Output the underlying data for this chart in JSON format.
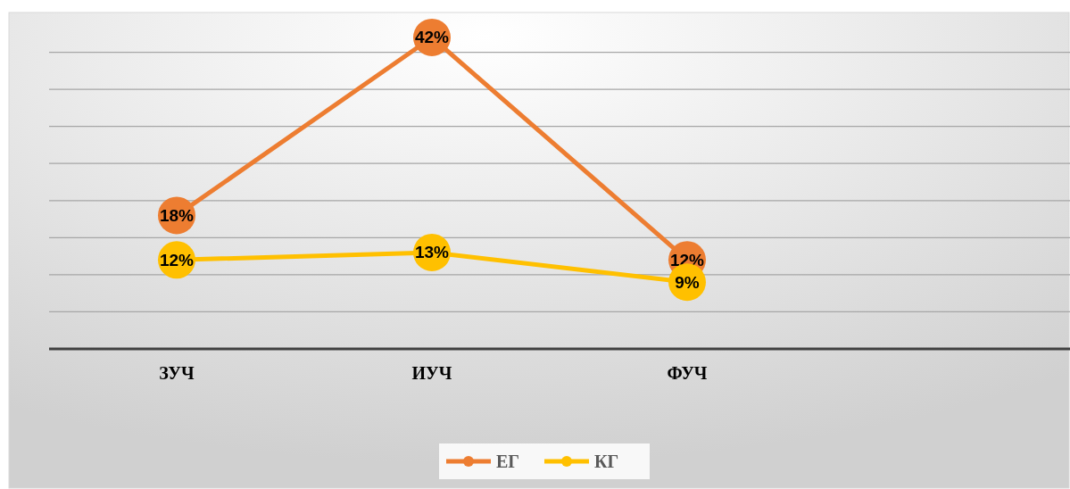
{
  "chart_data": {
    "type": "line",
    "categories": [
      "ЗУЧ",
      "ИУЧ",
      "ФУЧ",
      null
    ],
    "series": [
      {
        "name": "ЕГ",
        "color": "#ed7d31",
        "values": [
          18,
          42,
          12,
          null
        ],
        "value_labels": [
          "18%",
          "42%",
          "12%",
          null
        ]
      },
      {
        "name": "КГ",
        "color": "#ffc000",
        "values": [
          12,
          13,
          9,
          null
        ],
        "value_labels": [
          "12%",
          "13%",
          "9%",
          null
        ]
      }
    ],
    "ylim": [
      0,
      45
    ],
    "yticks": [
      {
        "value": 0,
        "label": null
      },
      {
        "value": 5,
        "label": null
      },
      {
        "value": 10,
        "label": null
      },
      {
        "value": 15,
        "label": null
      },
      {
        "value": 20,
        "label": null
      },
      {
        "value": 25,
        "label": null
      },
      {
        "value": 30,
        "label": null
      },
      {
        "value": 35,
        "label": null
      },
      {
        "value": 40,
        "label": null
      }
    ],
    "tick_labels": "x",
    "grid": "y",
    "legend": "bottom",
    "marker": "circle",
    "line_style": "solid"
  }
}
